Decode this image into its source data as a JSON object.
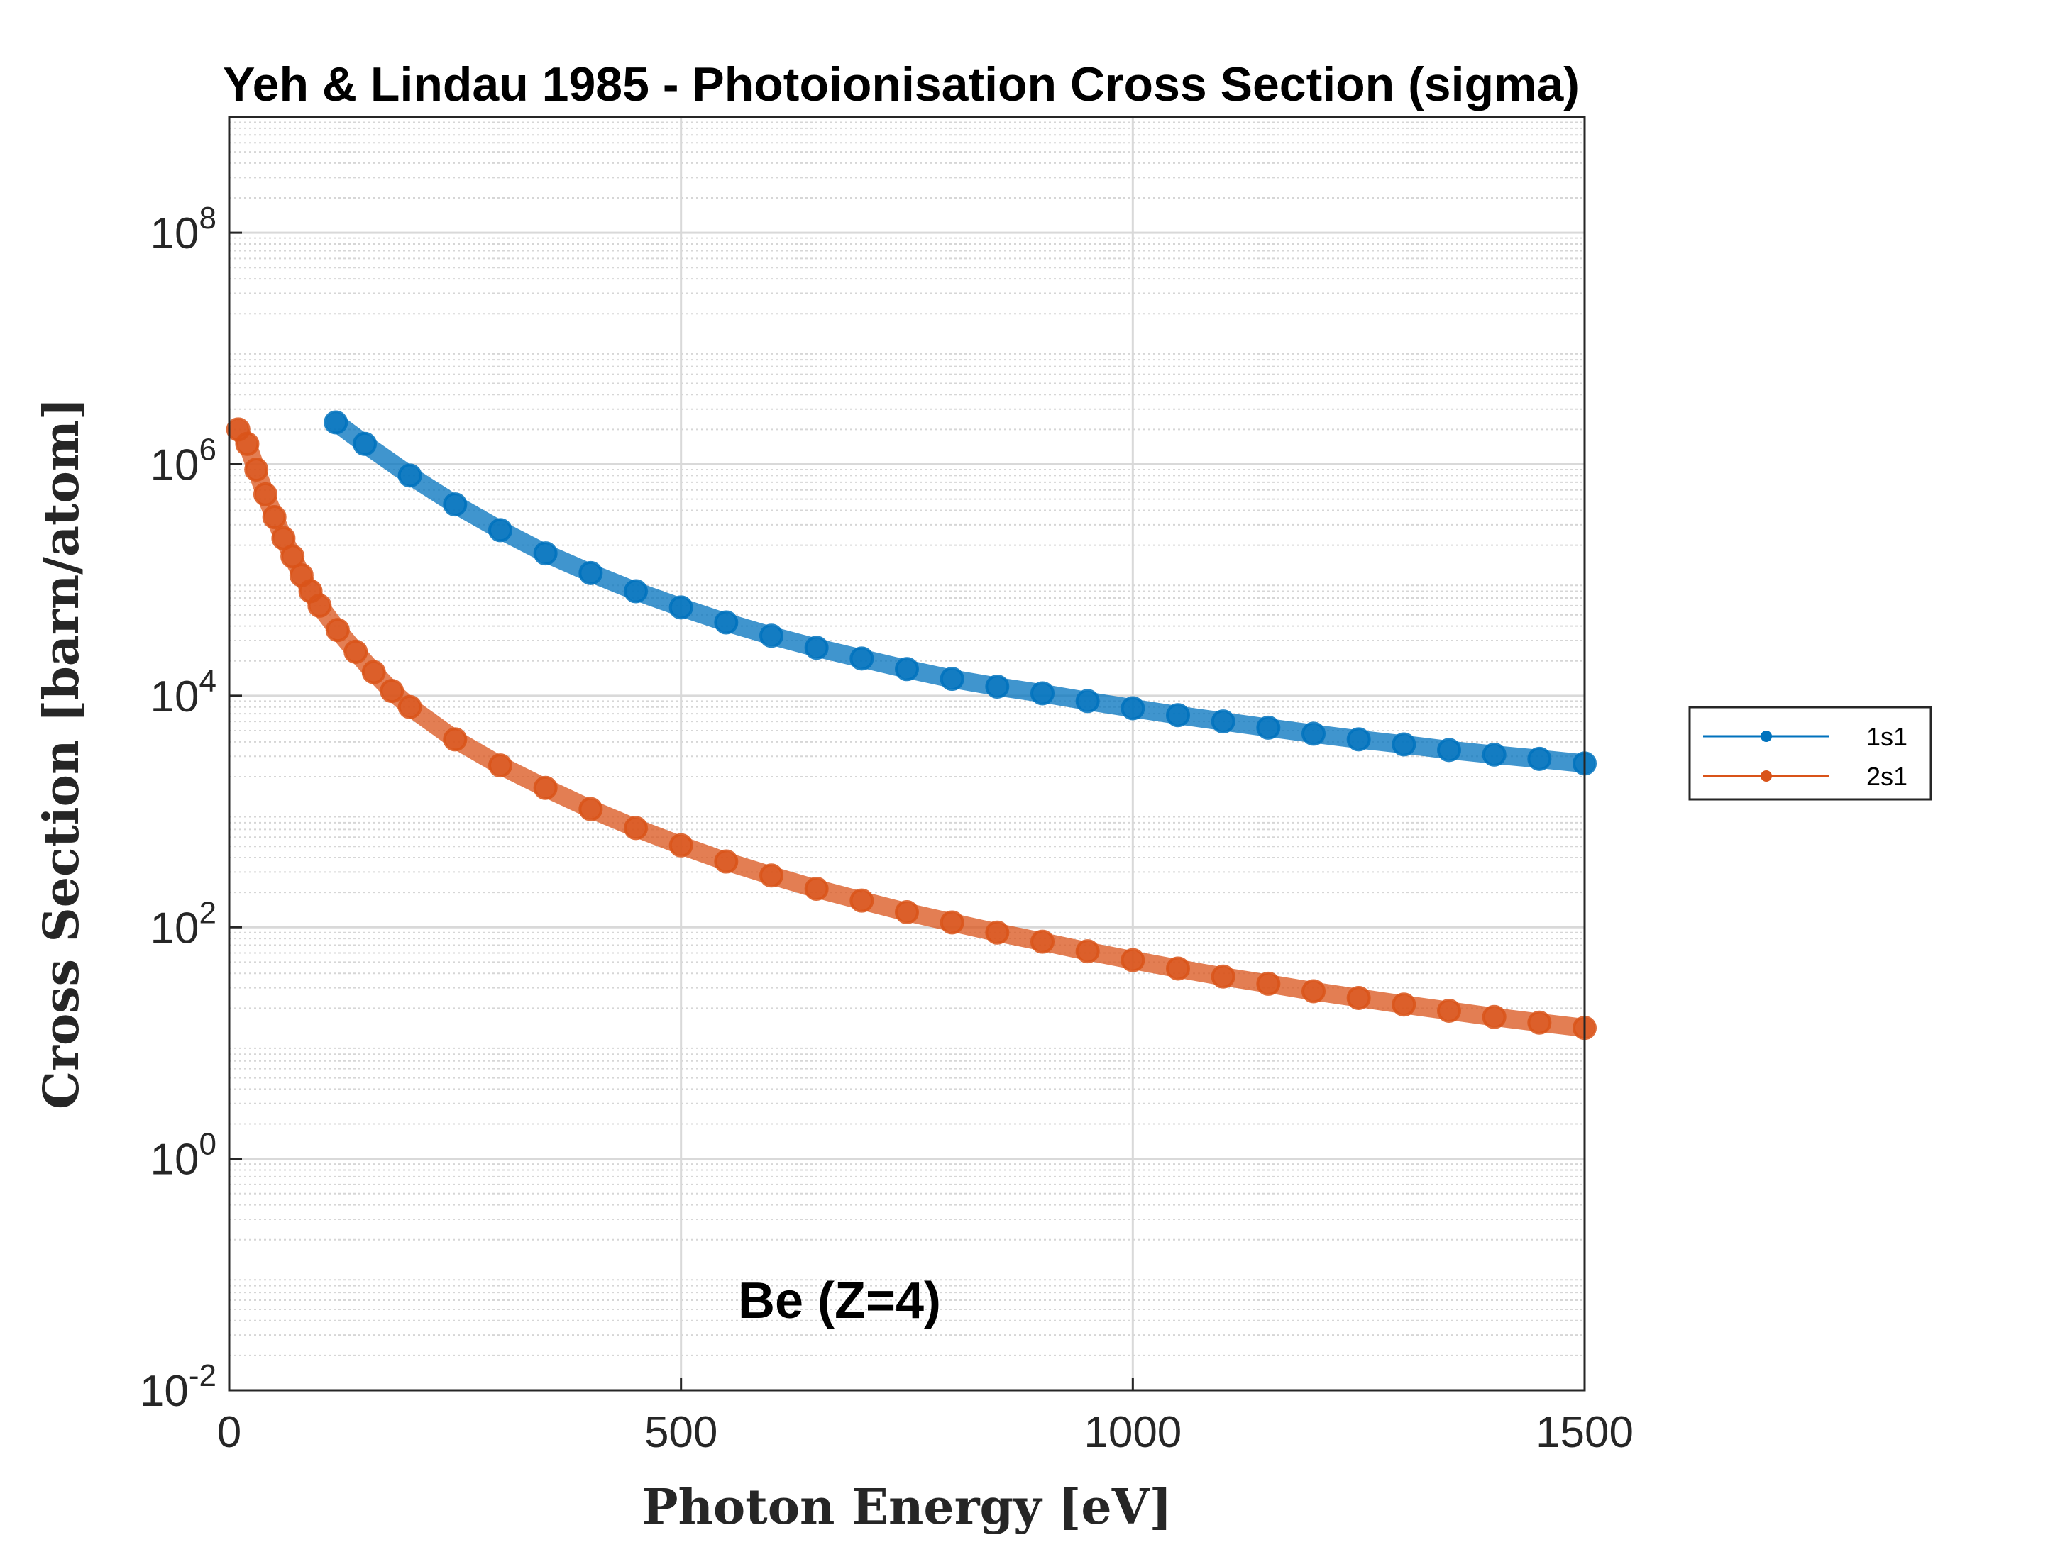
{
  "chart_data": {
    "type": "line",
    "title": "Yeh & Lindau 1985 - Photoionisation Cross Section (sigma)",
    "xlabel": "Photon Energy [eV]",
    "ylabel": "Cross Section [barn/atom]",
    "xlim": [
      0,
      1500
    ],
    "ylim": [
      0.01,
      1000000000
    ],
    "yscale": "log",
    "grid": true,
    "minor_grid": true,
    "xticks": [
      {
        "value": 0,
        "label": "0"
      },
      {
        "value": 500,
        "label": "500"
      },
      {
        "value": 1000,
        "label": "1000"
      },
      {
        "value": 1500,
        "label": "1500"
      }
    ],
    "yticks": [
      {
        "value": 0.01,
        "base": "10",
        "exp": "-2"
      },
      {
        "value": 1,
        "base": "10",
        "exp": "0"
      },
      {
        "value": 100,
        "base": "10",
        "exp": "2"
      },
      {
        "value": 10000,
        "base": "10",
        "exp": "4"
      },
      {
        "value": 1000000,
        "base": "10",
        "exp": "6"
      },
      {
        "value": 100000000,
        "base": "10",
        "exp": "8"
      }
    ],
    "annotation": "Be (Z=4)",
    "legend_position": "outside-right",
    "series": [
      {
        "name": "1s1",
        "color": "#0072BD",
        "x": [
          118,
          150,
          200,
          250,
          300,
          350,
          400,
          450,
          500,
          550,
          600,
          650,
          700,
          750,
          800,
          850,
          900,
          950,
          1000,
          1050,
          1100,
          1150,
          1200,
          1250,
          1300,
          1350,
          1400,
          1450,
          1500
        ],
        "y": [
          2300000,
          1500000,
          800000,
          450000,
          270000,
          170000,
          115000,
          80000,
          58000,
          43000,
          33000,
          26000,
          21000,
          17000,
          14000,
          12000,
          10500,
          9000,
          7800,
          6800,
          6000,
          5300,
          4700,
          4200,
          3800,
          3400,
          3100,
          2850,
          2600
        ]
      },
      {
        "name": "2s1",
        "color": "#D95319",
        "x": [
          10,
          20,
          30,
          40,
          50,
          60,
          70,
          80,
          90,
          100,
          120,
          140,
          160,
          180,
          200,
          250,
          300,
          350,
          400,
          450,
          500,
          550,
          600,
          650,
          700,
          750,
          800,
          850,
          900,
          950,
          1000,
          1050,
          1100,
          1150,
          1200,
          1250,
          1300,
          1350,
          1400,
          1450,
          1500
        ],
        "y": [
          2000000,
          1500000,
          900000,
          550000,
          350000,
          230000,
          160000,
          110000,
          80000,
          60000,
          37000,
          24000,
          16000,
          11000,
          8000,
          4200,
          2500,
          1600,
          1050,
          720,
          510,
          370,
          280,
          215,
          170,
          135,
          110,
          90,
          75,
          62,
          52,
          44,
          37.5,
          32.5,
          28,
          24.5,
          21.5,
          19,
          16.8,
          15,
          13.5
        ]
      }
    ]
  }
}
